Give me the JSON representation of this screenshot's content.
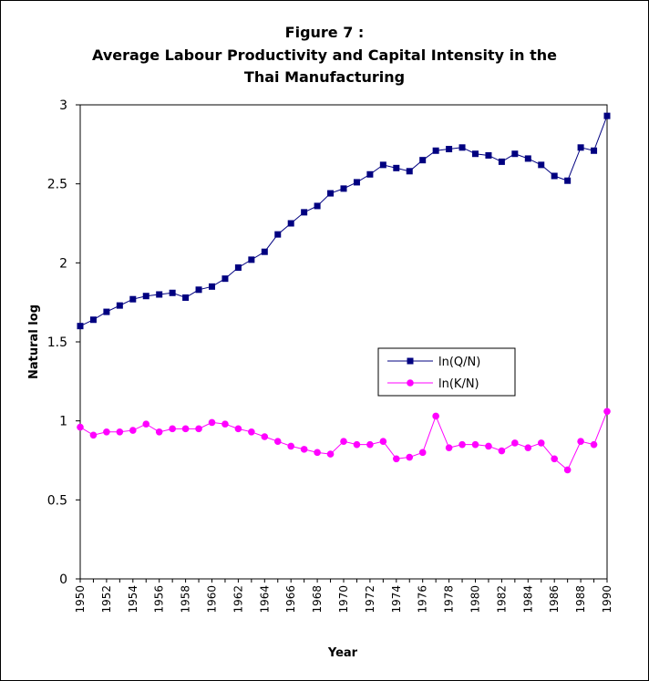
{
  "chart_data": {
    "type": "line",
    "title": "Figure 7 :",
    "subtitle_lines": [
      "Average Labour Productivity and Capital Intensity in the",
      "Thai Manufacturing"
    ],
    "xlabel": "Year",
    "ylabel": "Natural log",
    "ylim": [
      0,
      3
    ],
    "xlim": [
      1950,
      1990
    ],
    "y_ticks": [
      "0",
      "0.5",
      "1",
      "1.5",
      "2",
      "2.5",
      "3"
    ],
    "x_tick_labels": [
      "1950",
      "1952",
      "1954",
      "1956",
      "1958",
      "1960",
      "1962",
      "1964",
      "1966",
      "1968",
      "1970",
      "1972",
      "1974",
      "1976",
      "1978",
      "1980",
      "1982",
      "1984",
      "1986",
      "1988",
      "1990"
    ],
    "grid": false,
    "legend_position": "center-right",
    "x": [
      1950,
      1951,
      1952,
      1953,
      1954,
      1955,
      1956,
      1957,
      1958,
      1959,
      1960,
      1961,
      1962,
      1963,
      1964,
      1965,
      1966,
      1967,
      1968,
      1969,
      1970,
      1971,
      1972,
      1973,
      1974,
      1975,
      1976,
      1977,
      1978,
      1979,
      1980,
      1981,
      1982,
      1983,
      1984,
      1985,
      1986,
      1987,
      1988,
      1989,
      1990
    ],
    "series": [
      {
        "name": "ln(Q/N)",
        "color": "#000080",
        "marker": "square",
        "values": [
          1.6,
          1.64,
          1.69,
          1.73,
          1.77,
          1.79,
          1.8,
          1.81,
          1.78,
          1.83,
          1.85,
          1.9,
          1.97,
          2.02,
          2.07,
          2.18,
          2.25,
          2.32,
          2.36,
          2.44,
          2.47,
          2.51,
          2.56,
          2.62,
          2.6,
          2.58,
          2.65,
          2.71,
          2.72,
          2.73,
          2.69,
          2.68,
          2.64,
          2.69,
          2.66,
          2.62,
          2.55,
          2.52,
          2.73,
          2.71,
          2.93
        ]
      },
      {
        "name": "ln(K/N)",
        "color": "#ff00ff",
        "marker": "circle",
        "values": [
          0.96,
          0.91,
          0.93,
          0.93,
          0.94,
          0.98,
          0.93,
          0.95,
          0.95,
          0.95,
          0.99,
          0.98,
          0.95,
          0.93,
          0.9,
          0.87,
          0.84,
          0.82,
          0.8,
          0.79,
          0.87,
          0.85,
          0.85,
          0.87,
          0.76,
          0.77,
          0.8,
          1.03,
          0.83,
          0.85,
          0.85,
          0.84,
          0.81,
          0.86,
          0.83,
          0.86,
          0.76,
          0.69,
          0.87,
          0.85,
          1.06
        ]
      }
    ]
  }
}
